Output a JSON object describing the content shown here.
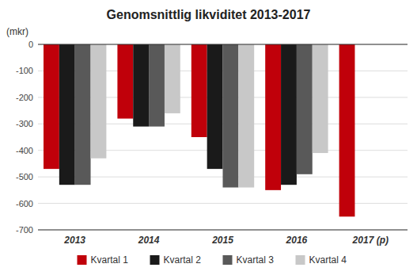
{
  "chart_data": {
    "type": "bar",
    "title": "Genomsnittlig likviditet 2013-2017",
    "ylabel": "(mkr)",
    "categories": [
      "2013",
      "2014",
      "2015",
      "2016",
      "2017 (p)"
    ],
    "series": [
      {
        "name": "Kvartal 1",
        "color": "#c0000a",
        "values": [
          -470,
          -280,
          -350,
          -550,
          -650
        ]
      },
      {
        "name": "Kvartal 2",
        "color": "#1a1a1a",
        "values": [
          -530,
          -310,
          -470,
          -530,
          null
        ]
      },
      {
        "name": "Kvartal 3",
        "color": "#595959",
        "values": [
          -530,
          -310,
          -540,
          -490,
          null
        ]
      },
      {
        "name": "Kvartal 4",
        "color": "#c8c8c8",
        "values": [
          -430,
          -260,
          -540,
          -410,
          null
        ]
      }
    ],
    "ylim": [
      -700,
      0
    ],
    "yticks": [
      0,
      -100,
      -200,
      -300,
      -400,
      -500,
      -600,
      -700
    ],
    "grid": true,
    "legend": "bottom"
  }
}
